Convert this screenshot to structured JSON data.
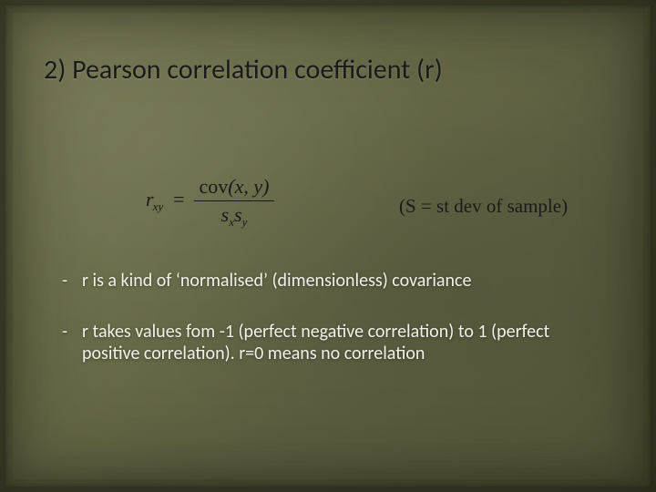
{
  "slide": {
    "background_gradient": [
      "#7a7a56",
      "#6d6e4a",
      "#5f6042",
      "#545638"
    ],
    "border_color": "#2a2c1a",
    "text_dark": "#1a1a1a",
    "text_light": "#f3f1e8"
  },
  "title": {
    "text": "2) Pearson correlation coefficient (r)",
    "fontsize": 30,
    "font_family": "Calibri",
    "color": "#1a1a1a"
  },
  "formula": {
    "lhs_var": "r",
    "lhs_sub": "xy",
    "equals": "=",
    "numerator_func": "cov",
    "numerator_args": "(x, y)",
    "denom_s1": "s",
    "denom_s1_sub": "x",
    "denom_s2": "s",
    "denom_s2_sub": "y",
    "font_family": "Times New Roman",
    "fontsize": 22,
    "color": "#1a1a1a"
  },
  "side_note": {
    "text": "(S = st dev of sample)",
    "font_family": "Times New Roman",
    "fontsize": 21,
    "color": "#1a1a1a"
  },
  "bullets": {
    "fontsize": 20,
    "color": "#f3f1e8",
    "font_family": "Calibri",
    "items": [
      "r is a kind of ‘normalised’ (dimensionless) covariance",
      "r  takes values fom -1 (perfect negative correlation) to 1 (perfect positive correlation). r=0 means no correlation"
    ]
  }
}
